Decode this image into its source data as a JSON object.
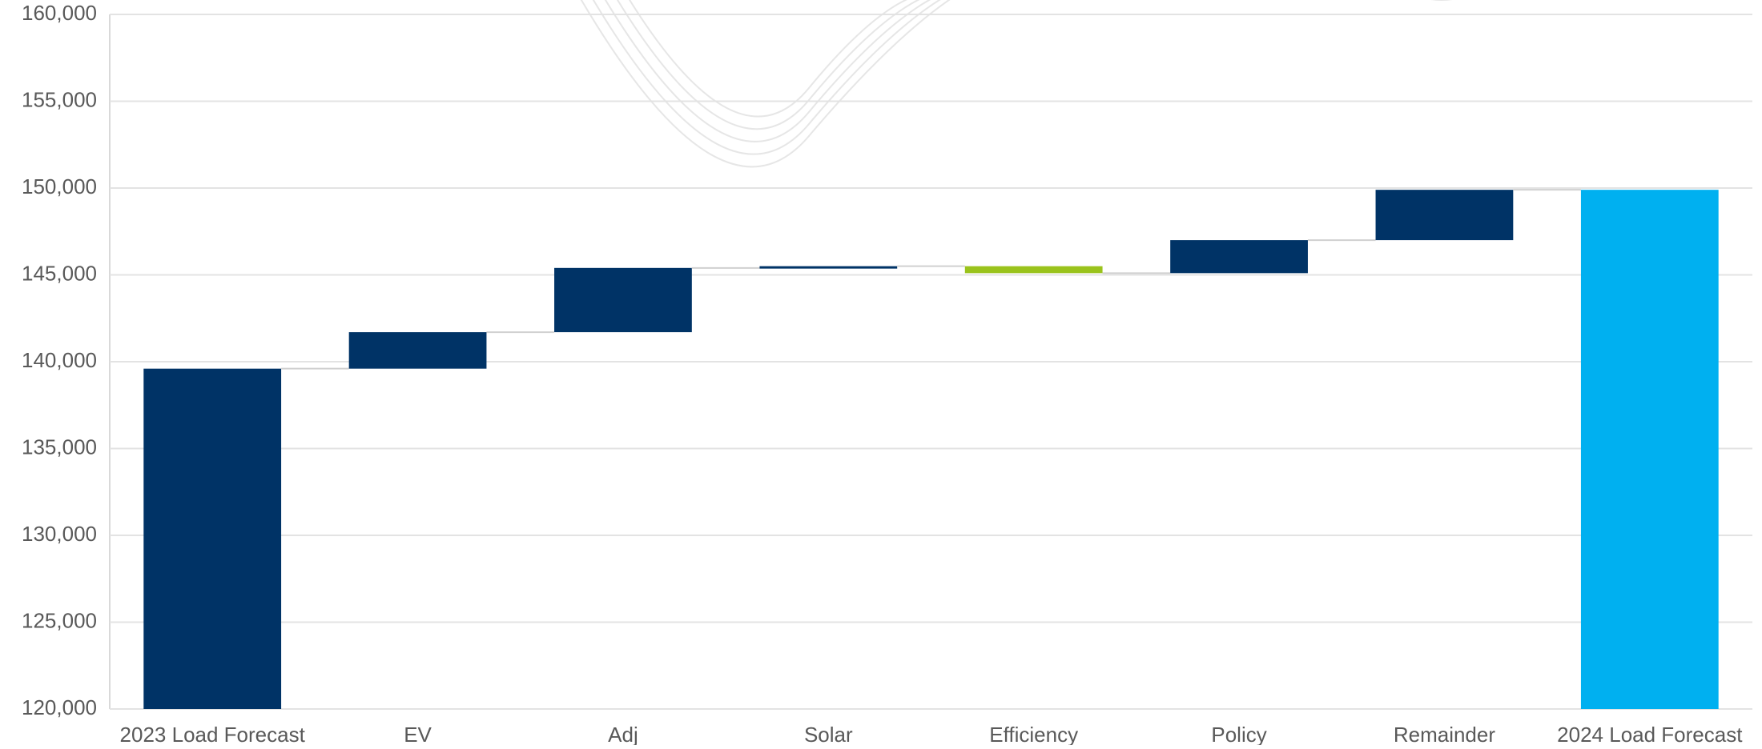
{
  "chart_data": {
    "type": "waterfall",
    "categories": [
      "2023 Load Forecast",
      "EV",
      "Adj",
      "Solar",
      "Efficiency",
      "Policy",
      "Remainder",
      "2024 Load Forecast"
    ],
    "values": [
      139600,
      2100,
      3700,
      100,
      -400,
      1900,
      2900,
      149900
    ],
    "totals": [
      0,
      7
    ],
    "colors": [
      "#003366",
      "#003366",
      "#003366",
      "#003366",
      "#9ac31c",
      "#003366",
      "#003366",
      "#00b0f0"
    ],
    "ylim": [
      120000,
      160000
    ],
    "yticks": [
      {
        "value": 120000,
        "label": "120,000"
      },
      {
        "value": 125000,
        "label": "125,000"
      },
      {
        "value": 130000,
        "label": "130,000"
      },
      {
        "value": 135000,
        "label": "135,000"
      },
      {
        "value": 140000,
        "label": "140,000"
      },
      {
        "value": 145000,
        "label": "145,000"
      },
      {
        "value": 150000,
        "label": "150,000"
      },
      {
        "value": 155000,
        "label": "155,000"
      },
      {
        "value": 160000,
        "label": "160,000"
      }
    ],
    "grid": true
  }
}
